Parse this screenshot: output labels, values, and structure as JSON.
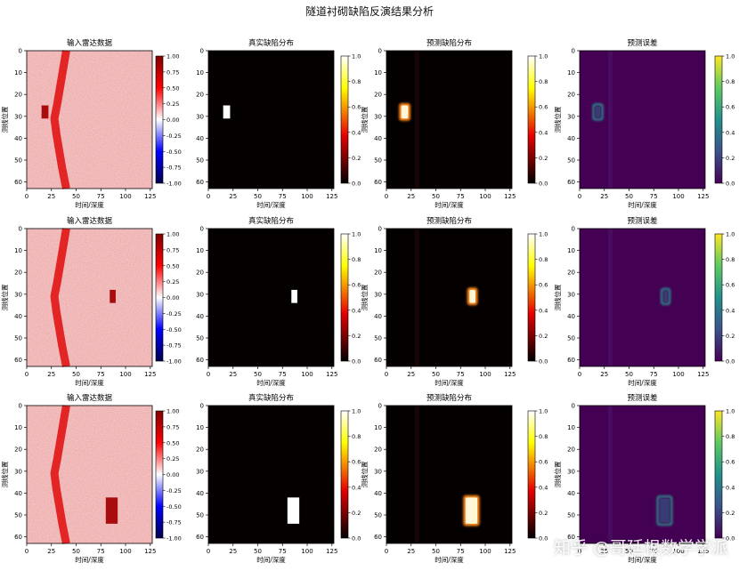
{
  "title": "隧道衬砌缺陷反演结果分析",
  "watermark": "知乎 @哥廷根数学学派",
  "colors": {
    "seismic_low": "#00004c",
    "seismic_mid": "#ffffff",
    "seismic_high": "#7f0000",
    "radar_background": "#f3c3c3",
    "radar_band": "#e21818",
    "radar_defect": "#a80c0c",
    "hot_low": "#000000",
    "hot_high": "#ffffff",
    "viridis_low": "#440154",
    "viridis_high": "#fde725"
  },
  "chart_data": [
    {
      "type": "heatmap",
      "row": 1,
      "panels": [
        {
          "title": "输入雷达数据",
          "xlabel": "时间/深度",
          "ylabel": "测线位置",
          "colormap": "seismic",
          "clim": [
            -1.0,
            1.0
          ],
          "cbar_ticks": [
            "1.00",
            "0.75",
            "0.50",
            "0.25",
            "0.00",
            "-0.25",
            "-0.50",
            "-0.75",
            "-1.00"
          ]
        },
        {
          "title": "真实缺陷分布",
          "xlabel": "时间/深度",
          "ylabel": "",
          "colormap": "hot",
          "clim": [
            0.0,
            1.0
          ],
          "cbar_ticks": [
            "1.0",
            "0.8",
            "0.6",
            "0.4",
            "0.2",
            "0.0"
          ]
        },
        {
          "title": "预测缺陷分布",
          "xlabel": "时间/深度",
          "ylabel": "测线位置",
          "colormap": "hot",
          "clim": [
            0.0,
            1.0
          ],
          "cbar_ticks": [
            "1.0",
            "0.8",
            "0.6",
            "0.4",
            "0.2",
            "0.0"
          ]
        },
        {
          "title": "预测误差",
          "xlabel": "时间/深度",
          "ylabel": "测线位置",
          "colormap": "viridis",
          "clim": [
            0.0,
            1.0
          ],
          "cbar_ticks": [
            "1.0",
            "0.8",
            "0.6",
            "0.4",
            "0.2",
            "0.0"
          ]
        }
      ],
      "defect": {
        "x": [
          15,
          22
        ],
        "y": [
          25,
          31
        ]
      }
    },
    {
      "type": "heatmap",
      "row": 2,
      "panels": [
        {
          "title": "输入雷达数据",
          "xlabel": "时间/深度",
          "ylabel": "测线位置",
          "colormap": "seismic",
          "clim": [
            -1.0,
            1.0
          ],
          "cbar_ticks": [
            "1.00",
            "0.75",
            "0.50",
            "0.25",
            "0.00",
            "-0.25",
            "-0.50",
            "-0.75",
            "-1.00"
          ]
        },
        {
          "title": "真实缺陷分布",
          "xlabel": "时间/深度",
          "ylabel": "",
          "colormap": "hot",
          "clim": [
            0.0,
            1.0
          ],
          "cbar_ticks": [
            "1.0",
            "0.8",
            "0.6",
            "0.4",
            "0.2",
            "0.0"
          ]
        },
        {
          "title": "预测缺陷分布",
          "xlabel": "时间/深度",
          "ylabel": "测线位置",
          "colormap": "hot",
          "clim": [
            0.0,
            1.0
          ],
          "cbar_ticks": [
            "1.0",
            "0.8",
            "0.6",
            "0.4",
            "0.2",
            "0.0"
          ]
        },
        {
          "title": "预测误差",
          "xlabel": "时间/深度",
          "ylabel": "测线位置",
          "colormap": "viridis",
          "clim": [
            0.0,
            1.0
          ],
          "cbar_ticks": [
            "1.0",
            "0.8",
            "0.6",
            "0.4",
            "0.2",
            "0.0"
          ]
        }
      ],
      "defect": {
        "x": [
          84,
          90
        ],
        "y": [
          28,
          34
        ]
      }
    },
    {
      "type": "heatmap",
      "row": 3,
      "panels": [
        {
          "title": "输入雷达数据",
          "xlabel": "时间/深度",
          "ylabel": "测线位置",
          "colormap": "seismic",
          "clim": [
            -1.0,
            1.0
          ],
          "cbar_ticks": [
            "1.00",
            "0.75",
            "0.50",
            "0.25",
            "0.00",
            "-0.25",
            "-0.50",
            "-0.75",
            "-1.00"
          ]
        },
        {
          "title": "真实缺陷分布",
          "xlabel": "时间/深度",
          "ylabel": "",
          "colormap": "hot",
          "clim": [
            0.0,
            1.0
          ],
          "cbar_ticks": [
            "1.0",
            "0.8",
            "0.6",
            "0.4",
            "0.2",
            "0.0"
          ]
        },
        {
          "title": "预测缺陷分布",
          "xlabel": "时间/深度",
          "ylabel": "测线位置",
          "colormap": "hot",
          "clim": [
            0.0,
            1.0
          ],
          "cbar_ticks": [
            "1.0",
            "0.8",
            "0.6",
            "0.4",
            "0.2",
            "0.0"
          ]
        },
        {
          "title": "预测误差",
          "xlabel": "时间/深度",
          "ylabel": "测线位置",
          "colormap": "viridis",
          "clim": [
            0.0,
            1.0
          ],
          "cbar_ticks": [
            "1.0",
            "0.8",
            "0.6",
            "0.4",
            "0.2",
            "0.0"
          ]
        }
      ],
      "defect": {
        "x": [
          80,
          92
        ],
        "y": [
          42,
          54
        ]
      }
    }
  ],
  "axes": {
    "x_ticks": [
      0,
      25,
      50,
      75,
      100,
      125
    ],
    "y_ticks": [
      0,
      10,
      20,
      30,
      40,
      50,
      60
    ],
    "xlim": [
      0,
      127
    ],
    "ylim": [
      63,
      0
    ]
  }
}
